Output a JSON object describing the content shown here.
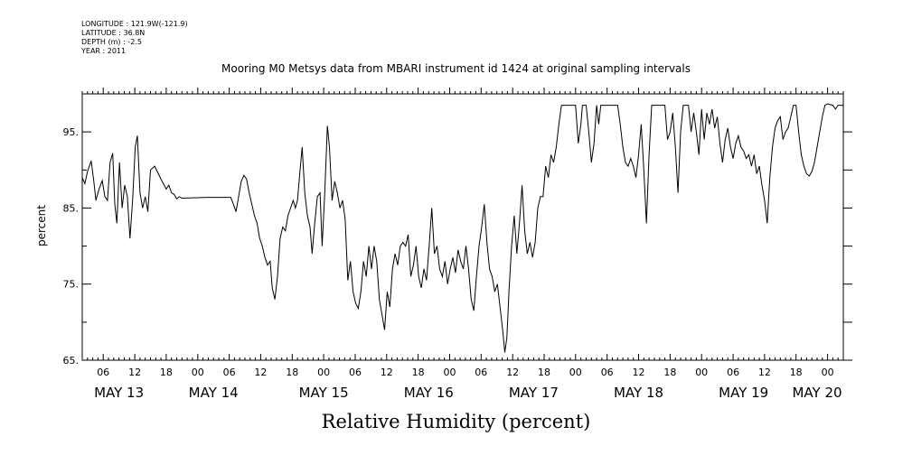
{
  "metadata": [
    "LONGITUDE : 121.9W(-121.9)",
    "LATITUDE : 36.8N",
    "DEPTH (m) : -2.5",
    "YEAR : 2011"
  ],
  "chart_data": {
    "type": "line",
    "title": "Mooring M0 Metsys data from MBARI instrument id 1424 at original sampling intervals",
    "xlabel": "Relative Humidity (percent)",
    "ylabel": "percent",
    "x_unit": "hours since 2011-05-13 00:00 (axis shows hour-of-day and dates)",
    "xlim": [
      2,
      147
    ],
    "ylim": [
      65,
      100
    ],
    "y_ticks": [
      65,
      75,
      85,
      95
    ],
    "y_tick_labels": [
      "65.",
      "75.",
      "85.",
      "95."
    ],
    "x_hour_ticks": [
      6,
      12,
      18,
      24,
      30,
      36,
      42,
      48,
      54,
      60,
      66,
      72,
      78,
      84,
      90,
      96,
      102,
      108,
      114,
      120,
      126,
      132,
      138,
      144
    ],
    "x_hour_labels": [
      "06",
      "12",
      "18",
      "00",
      "06",
      "12",
      "18",
      "00",
      "06",
      "12",
      "18",
      "00",
      "06",
      "12",
      "18",
      "00",
      "06",
      "12",
      "18",
      "00",
      "06",
      "12",
      "18",
      "00"
    ],
    "date_labels": [
      {
        "label": "MAY 13",
        "x": 9
      },
      {
        "label": "MAY 14",
        "x": 27
      },
      {
        "label": "MAY 15",
        "x": 48
      },
      {
        "label": "MAY 16",
        "x": 68
      },
      {
        "label": "MAY 17",
        "x": 88
      },
      {
        "label": "MAY 18",
        "x": 108
      },
      {
        "label": "MAY 19",
        "x": 128
      },
      {
        "label": "MAY 20",
        "x": 142
      }
    ],
    "grid": false,
    "series": [
      {
        "color": "#000000",
        "points": [
          [
            2,
            89.0
          ],
          [
            2.5,
            88.2
          ],
          [
            3,
            89.8
          ],
          [
            3.7,
            91.2
          ],
          [
            4.2,
            88.5
          ],
          [
            4.6,
            86.0
          ],
          [
            5.2,
            87.5
          ],
          [
            5.8,
            88.6
          ],
          [
            6.3,
            86.5
          ],
          [
            6.8,
            86.0
          ],
          [
            7.3,
            91.0
          ],
          [
            7.8,
            92.2
          ],
          [
            8.2,
            85.5
          ],
          [
            8.6,
            83.0
          ],
          [
            9.1,
            91.0
          ],
          [
            9.6,
            85.0
          ],
          [
            10.1,
            88.0
          ],
          [
            10.6,
            86.5
          ],
          [
            11.1,
            81.0
          ],
          [
            11.6,
            86.0
          ],
          [
            12.1,
            93.0
          ],
          [
            12.5,
            94.5
          ],
          [
            13.0,
            87.0
          ],
          [
            13.5,
            85.0
          ],
          [
            14.0,
            86.5
          ],
          [
            14.5,
            84.5
          ],
          [
            15.0,
            90.0
          ],
          [
            15.8,
            90.5
          ],
          [
            16.5,
            89.5
          ],
          [
            17.2,
            88.5
          ],
          [
            18.0,
            87.5
          ],
          [
            18.5,
            88.0
          ],
          [
            19.0,
            87.0
          ],
          [
            19.5,
            86.8
          ],
          [
            20.0,
            86.2
          ],
          [
            20.5,
            86.5
          ],
          [
            21,
            86.3
          ],
          [
            26,
            86.4
          ],
          [
            30.3,
            86.4
          ],
          [
            30.8,
            85.5
          ],
          [
            31.3,
            84.5
          ],
          [
            31.8,
            86.5
          ],
          [
            32.3,
            88.5
          ],
          [
            32.8,
            89.3
          ],
          [
            33.3,
            88.8
          ],
          [
            33.8,
            87.0
          ],
          [
            34.3,
            85.5
          ],
          [
            34.8,
            84.0
          ],
          [
            35.3,
            83.0
          ],
          [
            35.8,
            81.0
          ],
          [
            36.3,
            80.0
          ],
          [
            36.8,
            78.5
          ],
          [
            37.3,
            77.5
          ],
          [
            37.8,
            78.0
          ],
          [
            38.2,
            74.5
          ],
          [
            38.7,
            73.0
          ],
          [
            39.2,
            76.0
          ],
          [
            39.7,
            81.0
          ],
          [
            40.2,
            82.5
          ],
          [
            40.7,
            82.0
          ],
          [
            41.2,
            84.0
          ],
          [
            41.7,
            85.0
          ],
          [
            42.2,
            86.0
          ],
          [
            42.6,
            85.0
          ],
          [
            43.0,
            86.0
          ],
          [
            43.5,
            90.0
          ],
          [
            43.9,
            93.0
          ],
          [
            44.4,
            87.0
          ],
          [
            44.9,
            84.0
          ],
          [
            45.4,
            82.5
          ],
          [
            45.8,
            79.0
          ],
          [
            46.3,
            83.0
          ],
          [
            46.8,
            86.5
          ],
          [
            47.3,
            87.0
          ],
          [
            47.7,
            80.0
          ],
          [
            48.2,
            87.0
          ],
          [
            48.7,
            95.8
          ],
          [
            49.1,
            93.0
          ],
          [
            49.6,
            86.0
          ],
          [
            50.1,
            88.5
          ],
          [
            50.6,
            87.0
          ],
          [
            51.1,
            85.0
          ],
          [
            51.6,
            86.0
          ],
          [
            52.1,
            83.5
          ],
          [
            52.6,
            75.5
          ],
          [
            53.1,
            78.0
          ],
          [
            53.6,
            74.0
          ],
          [
            54.1,
            72.5
          ],
          [
            54.6,
            71.8
          ],
          [
            55.1,
            74.0
          ],
          [
            55.6,
            78.0
          ],
          [
            56.1,
            76.0
          ],
          [
            56.6,
            80.0
          ],
          [
            57.1,
            77.0
          ],
          [
            57.6,
            80.0
          ],
          [
            58.1,
            78.0
          ],
          [
            58.6,
            73.0
          ],
          [
            59.1,
            71.0
          ],
          [
            59.6,
            69.0
          ],
          [
            60.1,
            74.0
          ],
          [
            60.6,
            72.0
          ],
          [
            61.1,
            77.0
          ],
          [
            61.6,
            79.0
          ],
          [
            62.1,
            77.5
          ],
          [
            62.6,
            80.0
          ],
          [
            63.1,
            80.5
          ],
          [
            63.6,
            80.0
          ],
          [
            64.1,
            81.5
          ],
          [
            64.6,
            76.0
          ],
          [
            65.1,
            77.5
          ],
          [
            65.6,
            80.0
          ],
          [
            66.1,
            76.0
          ],
          [
            66.6,
            74.5
          ],
          [
            67.1,
            77.0
          ],
          [
            67.6,
            75.5
          ],
          [
            68.1,
            80.0
          ],
          [
            68.6,
            85.0
          ],
          [
            69.1,
            79.0
          ],
          [
            69.6,
            80.0
          ],
          [
            70.1,
            77.0
          ],
          [
            70.6,
            76.0
          ],
          [
            71.1,
            78.0
          ],
          [
            71.6,
            75.0
          ],
          [
            72.1,
            77.0
          ],
          [
            72.6,
            78.5
          ],
          [
            73.1,
            76.5
          ],
          [
            73.6,
            79.5
          ],
          [
            74.1,
            78.0
          ],
          [
            74.6,
            77.0
          ],
          [
            75.1,
            80.0
          ],
          [
            75.6,
            77.0
          ],
          [
            76.1,
            73.0
          ],
          [
            76.6,
            71.5
          ],
          [
            77.1,
            76.0
          ],
          [
            77.6,
            80.0
          ],
          [
            78.1,
            82.5
          ],
          [
            78.6,
            85.5
          ],
          [
            79.1,
            80.5
          ],
          [
            79.6,
            77.0
          ],
          [
            80.1,
            76.0
          ],
          [
            80.6,
            74.0
          ],
          [
            81.1,
            75.0
          ],
          [
            81.6,
            72.0
          ],
          [
            82.1,
            69.0
          ],
          [
            82.5,
            66.0
          ],
          [
            82.9,
            68.0
          ],
          [
            83.3,
            74.0
          ],
          [
            83.8,
            80.0
          ],
          [
            84.3,
            84.0
          ],
          [
            84.8,
            79.0
          ],
          [
            85.3,
            83.0
          ],
          [
            85.8,
            88.0
          ],
          [
            86.3,
            82.0
          ],
          [
            86.8,
            79.0
          ],
          [
            87.3,
            80.5
          ],
          [
            87.8,
            78.5
          ],
          [
            88.3,
            80.5
          ],
          [
            88.8,
            85.0
          ],
          [
            89.3,
            86.5
          ],
          [
            89.8,
            86.5
          ],
          [
            90.3,
            90.5
          ],
          [
            90.8,
            89.0
          ],
          [
            91.3,
            92.0
          ],
          [
            91.8,
            91.0
          ],
          [
            92.3,
            93.0
          ],
          [
            92.8,
            96.0
          ],
          [
            93.3,
            98.5
          ],
          [
            96.0,
            98.5
          ],
          [
            96.5,
            93.5
          ],
          [
            97.0,
            96.0
          ],
          [
            97.3,
            98.5
          ],
          [
            98.0,
            98.5
          ],
          [
            98.5,
            95.0
          ],
          [
            99.0,
            91.0
          ],
          [
            99.5,
            93.5
          ],
          [
            100.0,
            98.5
          ],
          [
            100.4,
            96.0
          ],
          [
            100.8,
            98.5
          ],
          [
            104.0,
            98.5
          ],
          [
            104.5,
            96.0
          ],
          [
            105.0,
            93.0
          ],
          [
            105.5,
            91.0
          ],
          [
            106.0,
            90.5
          ],
          [
            106.5,
            91.5
          ],
          [
            107.0,
            90.5
          ],
          [
            107.5,
            89.0
          ],
          [
            108.0,
            92.0
          ],
          [
            108.5,
            96.0
          ],
          [
            109.0,
            90.0
          ],
          [
            109.5,
            83.0
          ],
          [
            110.0,
            92.0
          ],
          [
            110.5,
            98.5
          ],
          [
            113.0,
            98.5
          ],
          [
            113.5,
            94.0
          ],
          [
            114.0,
            95.0
          ],
          [
            114.5,
            97.5
          ],
          [
            115.0,
            93.0
          ],
          [
            115.5,
            87.0
          ],
          [
            116.0,
            95.0
          ],
          [
            116.5,
            98.5
          ],
          [
            117.5,
            98.5
          ],
          [
            118.0,
            95.0
          ],
          [
            118.5,
            97.5
          ],
          [
            119.0,
            95.0
          ],
          [
            119.5,
            92.0
          ],
          [
            120.0,
            98.0
          ],
          [
            120.5,
            94.0
          ],
          [
            121.0,
            97.5
          ],
          [
            121.5,
            96.0
          ],
          [
            122.0,
            98.0
          ],
          [
            122.5,
            95.5
          ],
          [
            123.0,
            97.0
          ],
          [
            123.5,
            93.5
          ],
          [
            124.0,
            91.0
          ],
          [
            124.5,
            94.0
          ],
          [
            125.0,
            95.5
          ],
          [
            125.5,
            93.0
          ],
          [
            126.0,
            91.5
          ],
          [
            126.5,
            93.5
          ],
          [
            127.0,
            94.5
          ],
          [
            127.5,
            93.0
          ],
          [
            128.0,
            92.5
          ],
          [
            128.5,
            91.5
          ],
          [
            129.0,
            92.0
          ],
          [
            129.5,
            90.5
          ],
          [
            130.0,
            92.0
          ],
          [
            130.5,
            89.5
          ],
          [
            131.0,
            90.5
          ],
          [
            131.5,
            88.0
          ],
          [
            132.0,
            86.0
          ],
          [
            132.5,
            83.0
          ],
          [
            133.0,
            89.0
          ],
          [
            133.5,
            93.0
          ],
          [
            134.0,
            95.5
          ],
          [
            134.5,
            96.5
          ],
          [
            135.0,
            97.0
          ],
          [
            135.5,
            94.0
          ],
          [
            136.0,
            95.0
          ],
          [
            136.5,
            95.5
          ],
          [
            137.0,
            97.0
          ],
          [
            137.5,
            98.5
          ],
          [
            138.0,
            98.5
          ],
          [
            138.5,
            95.0
          ],
          [
            139.0,
            92.0
          ],
          [
            139.5,
            90.5
          ],
          [
            140.0,
            89.5
          ],
          [
            140.5,
            89.2
          ],
          [
            141.0,
            89.8
          ],
          [
            141.5,
            91.0
          ],
          [
            142.0,
            93.0
          ],
          [
            142.5,
            95.0
          ],
          [
            143.0,
            97.0
          ],
          [
            143.5,
            98.5
          ],
          [
            144.0,
            98.7
          ],
          [
            145.0,
            98.5
          ],
          [
            145.5,
            98.0
          ],
          [
            146.0,
            98.5
          ],
          [
            147.0,
            98.5
          ]
        ]
      }
    ]
  }
}
